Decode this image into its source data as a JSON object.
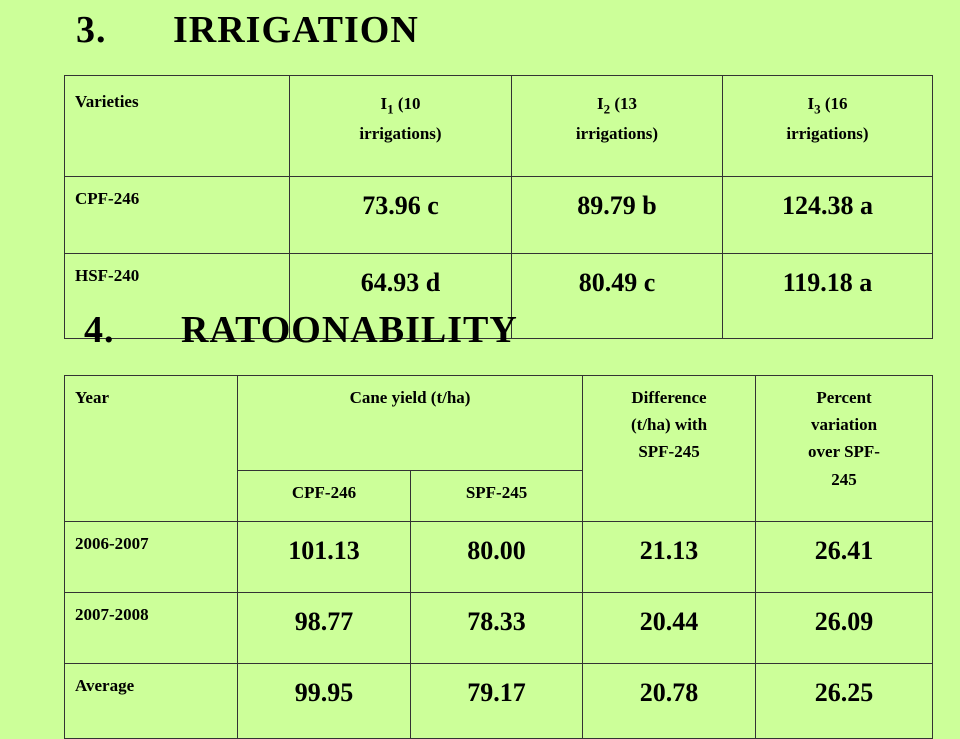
{
  "section1": {
    "number": "3.",
    "title": "IRRIGATION",
    "header": {
      "varieties": "Varieties",
      "i1_main": "I",
      "i1_sub": "1",
      "i1_rest": " (10",
      "i1_line2": "irrigations)",
      "i2_main": "I",
      "i2_sub": "2",
      "i2_rest": " (13",
      "i2_line2": "irrigations)",
      "i3_main": "I",
      "i3_sub": "3",
      "i3_rest": " (16",
      "i3_line2": "irrigations)"
    },
    "rows": [
      {
        "variety": "CPF-246",
        "i1": "73.96 c",
        "i2": "89.79 b",
        "i3": "124.38 a"
      },
      {
        "variety": "HSF-240",
        "i1": "64.93 d",
        "i2": "80.49 c",
        "i3": "119.18 a"
      }
    ]
  },
  "section2": {
    "number": "4.",
    "title": "RATOONABILITY",
    "header": {
      "year": "Year",
      "cane_yield": "Cane yield (t/ha)",
      "difference_l1": "Difference",
      "difference_l2": "(t/ha) with",
      "difference_l3": "SPF-245",
      "percent_l1": "Percent",
      "percent_l2": "variation",
      "percent_l3": "over SPF-",
      "percent_l4": "245",
      "cpf": "CPF-246",
      "spf": "SPF-245"
    },
    "rows": [
      {
        "year": "2006-2007",
        "cpf": "101.13",
        "spf": "80.00",
        "diff": "21.13",
        "pct": "26.41"
      },
      {
        "year": "2007-2008",
        "cpf": "98.77",
        "spf": "78.33",
        "diff": "20.44",
        "pct": "26.09"
      },
      {
        "year": "Average",
        "cpf": "99.95",
        "spf": "79.17",
        "diff": "20.78",
        "pct": "26.25"
      }
    ]
  }
}
